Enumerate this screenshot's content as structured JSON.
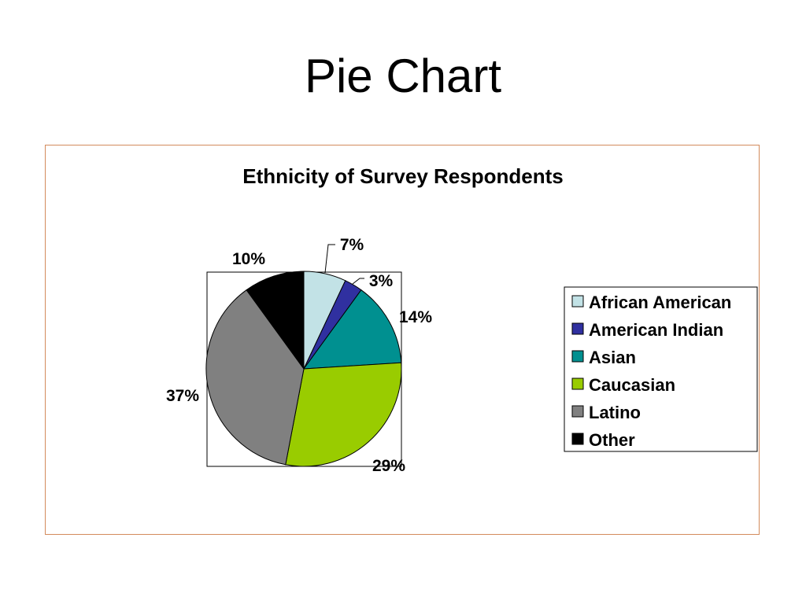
{
  "slide": {
    "title": "Pie Chart"
  },
  "chart_data": {
    "type": "pie",
    "title": "Ethnicity of Survey Respondents",
    "legend_position": "right",
    "slices": [
      {
        "label": "African American",
        "value": 7,
        "display": "7%",
        "color": "#c2e2e6"
      },
      {
        "label": "American Indian",
        "value": 3,
        "display": "3%",
        "color": "#3030a0"
      },
      {
        "label": "Asian",
        "value": 14,
        "display": "14%",
        "color": "#009090"
      },
      {
        "label": "Caucasian",
        "value": 29,
        "display": "29%",
        "color": "#99cc00"
      },
      {
        "label": "Latino",
        "value": 37,
        "display": "37%",
        "color": "#808080"
      },
      {
        "label": "Other",
        "value": 10,
        "display": "10%",
        "color": "#000000"
      }
    ]
  }
}
